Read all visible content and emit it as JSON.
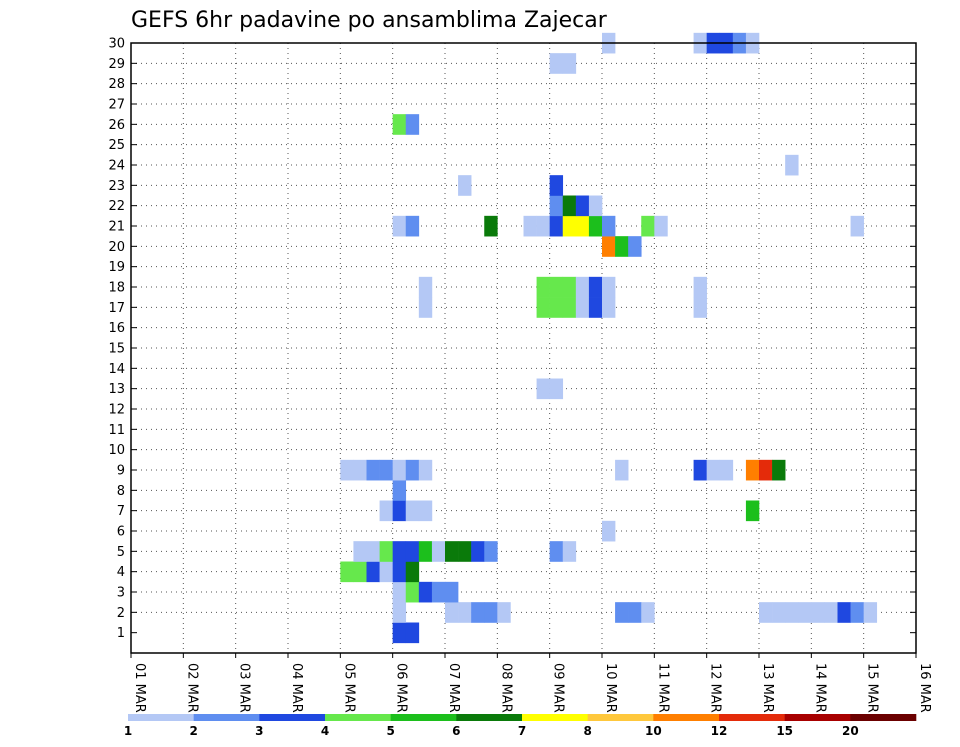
{
  "chart_data": {
    "type": "heatmap",
    "title": "GEFS 6hr padavine po ansamblima Zajecar",
    "x_tick_labels": [
      "01 MAR",
      "02 MAR",
      "03 MAR",
      "04 MAR",
      "05 MAR",
      "06 MAR",
      "07 MAR",
      "08 MAR",
      "09 MAR",
      "10 MAR",
      "11 MAR",
      "12 MAR",
      "13 MAR",
      "14 MAR",
      "15 MAR",
      "16 MAR"
    ],
    "y_tick_labels": [
      "1",
      "2",
      "3",
      "4",
      "5",
      "6",
      "7",
      "8",
      "9",
      "10",
      "11",
      "12",
      "13",
      "14",
      "15",
      "16",
      "17",
      "18",
      "19",
      "20",
      "21",
      "22",
      "23",
      "24",
      "25",
      "26",
      "27",
      "28",
      "29",
      "30"
    ],
    "x_range_days": [
      0,
      15
    ],
    "y_range_members": [
      0,
      30
    ],
    "steps_per_day": 4,
    "grid": true,
    "legend_position": "bottom",
    "legend": {
      "colors": [
        "#b4c8f5",
        "#5f8ef0",
        "#1f48e0",
        "#66e84c",
        "#1cbf1c",
        "#0a7a0a",
        "#ffff00",
        "#ffc83c",
        "#ff7f00",
        "#e42b0a",
        "#a80000",
        "#6b0000"
      ],
      "labels": [
        "1",
        "2",
        "3",
        "4",
        "5",
        "6",
        "7",
        "8",
        "10",
        "12",
        "15",
        "20"
      ]
    },
    "palette": [
      "#b4c8f5",
      "#5f8ef0",
      "#1f48e0",
      "#66e84c",
      "#1cbf1c",
      "#0a7a0a",
      "#ffff00",
      "#ffc83c",
      "#ff7f00",
      "#e42b0a",
      "#a80000",
      "#6b0000"
    ],
    "cells": [
      [
        0,
        20,
        2
      ],
      [
        0,
        21,
        2
      ],
      [
        1,
        20,
        0
      ],
      [
        1,
        24,
        0
      ],
      [
        1,
        25,
        0
      ],
      [
        1,
        26,
        1
      ],
      [
        1,
        27,
        1
      ],
      [
        1,
        28,
        0
      ],
      [
        1,
        37,
        1
      ],
      [
        1,
        38,
        1
      ],
      [
        1,
        39,
        0
      ],
      [
        1,
        48,
        0
      ],
      [
        1,
        49,
        0
      ],
      [
        1,
        50,
        0
      ],
      [
        1,
        51,
        0
      ],
      [
        1,
        52,
        0
      ],
      [
        1,
        53,
        0
      ],
      [
        1,
        54,
        2
      ],
      [
        1,
        55,
        1
      ],
      [
        1,
        56,
        0
      ],
      [
        2,
        20,
        0
      ],
      [
        2,
        21,
        3
      ],
      [
        2,
        22,
        2
      ],
      [
        2,
        23,
        1
      ],
      [
        2,
        24,
        1
      ],
      [
        3,
        16,
        3
      ],
      [
        3,
        17,
        3
      ],
      [
        3,
        18,
        2
      ],
      [
        3,
        19,
        0
      ],
      [
        3,
        20,
        2
      ],
      [
        3,
        21,
        5
      ],
      [
        4,
        17,
        0
      ],
      [
        4,
        18,
        0
      ],
      [
        4,
        19,
        3
      ],
      [
        4,
        20,
        2
      ],
      [
        4,
        21,
        2
      ],
      [
        4,
        22,
        4
      ],
      [
        4,
        23,
        0
      ],
      [
        4,
        24,
        5
      ],
      [
        4,
        25,
        5
      ],
      [
        4,
        26,
        2
      ],
      [
        4,
        27,
        1
      ],
      [
        4,
        32,
        1
      ],
      [
        4,
        33,
        0
      ],
      [
        5,
        36,
        0
      ],
      [
        6,
        19,
        0
      ],
      [
        6,
        20,
        2
      ],
      [
        6,
        21,
        0
      ],
      [
        6,
        22,
        0
      ],
      [
        6,
        47,
        4
      ],
      [
        7,
        20,
        1
      ],
      [
        8,
        16,
        0
      ],
      [
        8,
        17,
        0
      ],
      [
        8,
        18,
        1
      ],
      [
        8,
        19,
        1
      ],
      [
        8,
        20,
        0
      ],
      [
        8,
        21,
        1
      ],
      [
        8,
        22,
        0
      ],
      [
        8,
        37,
        0
      ],
      [
        8,
        43,
        2
      ],
      [
        8,
        44,
        0
      ],
      [
        8,
        45,
        0
      ],
      [
        8,
        47,
        8
      ],
      [
        8,
        48,
        9
      ],
      [
        8,
        49,
        5
      ],
      [
        12,
        31,
        0
      ],
      [
        12,
        32,
        0
      ],
      [
        16,
        22,
        0
      ],
      [
        16,
        31,
        3
      ],
      [
        16,
        32,
        3
      ],
      [
        16,
        33,
        3
      ],
      [
        16,
        34,
        0
      ],
      [
        16,
        35,
        2
      ],
      [
        16,
        36,
        0
      ],
      [
        16,
        43,
        0
      ],
      [
        17,
        22,
        0
      ],
      [
        17,
        31,
        3
      ],
      [
        17,
        32,
        3
      ],
      [
        17,
        33,
        3
      ],
      [
        17,
        34,
        0
      ],
      [
        17,
        35,
        2
      ],
      [
        17,
        36,
        0
      ],
      [
        17,
        43,
        0
      ],
      [
        19,
        36,
        8
      ],
      [
        19,
        37,
        4
      ],
      [
        19,
        38,
        1
      ],
      [
        20,
        20,
        0
      ],
      [
        20,
        21,
        1
      ],
      [
        20,
        27,
        5
      ],
      [
        20,
        30,
        0
      ],
      [
        20,
        31,
        0
      ],
      [
        20,
        32,
        2
      ],
      [
        20,
        33,
        6
      ],
      [
        20,
        34,
        6
      ],
      [
        20,
        35,
        4
      ],
      [
        20,
        36,
        1
      ],
      [
        20,
        39,
        3
      ],
      [
        20,
        40,
        0
      ],
      [
        20,
        55,
        0
      ],
      [
        21,
        32,
        1
      ],
      [
        21,
        33,
        5
      ],
      [
        21,
        34,
        2
      ],
      [
        21,
        35,
        0
      ],
      [
        22,
        32,
        2
      ],
      [
        22,
        25,
        0
      ],
      [
        23,
        50,
        0
      ],
      [
        25,
        20,
        3
      ],
      [
        25,
        21,
        1
      ],
      [
        28,
        32,
        0
      ],
      [
        28,
        33,
        0
      ],
      [
        29,
        36,
        0
      ],
      [
        29,
        43,
        0
      ],
      [
        29,
        44,
        2
      ],
      [
        29,
        45,
        2
      ],
      [
        29,
        46,
        1
      ],
      [
        29,
        47,
        0
      ]
    ]
  }
}
